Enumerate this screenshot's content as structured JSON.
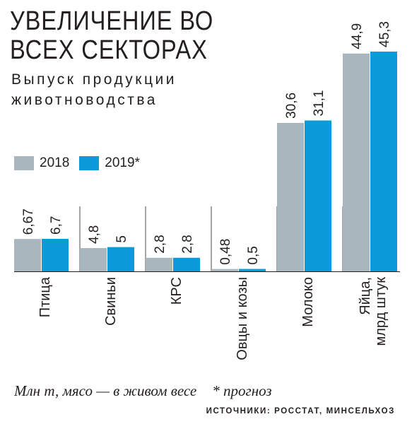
{
  "header": {
    "title": "УВЕЛИЧЕНИЕ ВО ВСЕХ СЕКТОРАХ",
    "subtitle": "Выпуск продукции животноводства"
  },
  "legend": [
    {
      "label": "2018",
      "color": "#a9b6be"
    },
    {
      "label": "2019*",
      "color": "#0b9bd8"
    }
  ],
  "footer": {
    "units_note": "Млн т, мясо — в живом весе",
    "forecast_note": "* прогноз",
    "sources": "ИСТОЧНИКИ: РОССТАТ, МИНСЕЛЬХОЗ"
  },
  "chart_data": {
    "type": "bar",
    "categories": [
      "Птица",
      "Свиньи",
      "КРС",
      "Овцы и козы",
      "Молоко",
      "Яйца, млрд штук"
    ],
    "series": [
      {
        "name": "2018",
        "values": [
          6.67,
          4.8,
          2.8,
          0.48,
          30.6,
          44.9
        ],
        "labels": [
          "6,67",
          "4,8",
          "2,8",
          "0,48",
          "30,6",
          "44,9"
        ],
        "color": "#a9b6be"
      },
      {
        "name": "2019*",
        "values": [
          6.7,
          5,
          2.8,
          0.5,
          31.1,
          45.3
        ],
        "labels": [
          "6,7",
          "5",
          "2,8",
          "0,5",
          "31,1",
          "45,3"
        ],
        "color": "#0b9bd8"
      }
    ],
    "ylim": [
      0,
      45.3
    ]
  }
}
